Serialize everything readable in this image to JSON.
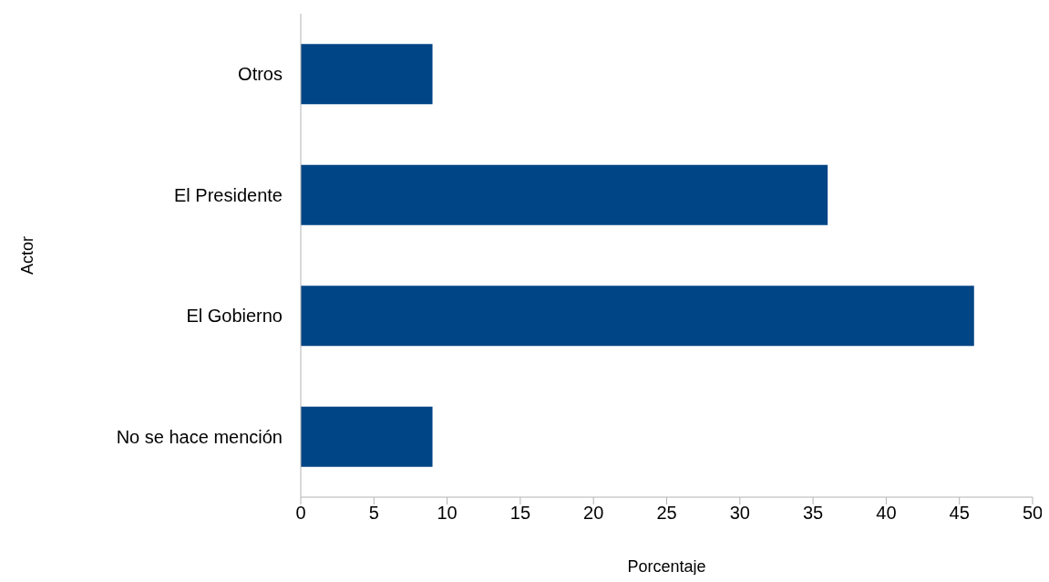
{
  "chart_data": {
    "type": "bar",
    "orientation": "horizontal",
    "xlabel": "Porcentaje",
    "ylabel": "Actor",
    "categories": [
      "Otros",
      "El Presidente",
      "El Gobierno",
      "No se hace mención"
    ],
    "values": [
      9,
      36,
      46,
      9
    ],
    "color": "#004586",
    "xlim": [
      0,
      50
    ],
    "xticks": [
      0,
      5,
      10,
      15,
      20,
      25,
      30,
      35,
      40,
      45,
      50
    ]
  }
}
